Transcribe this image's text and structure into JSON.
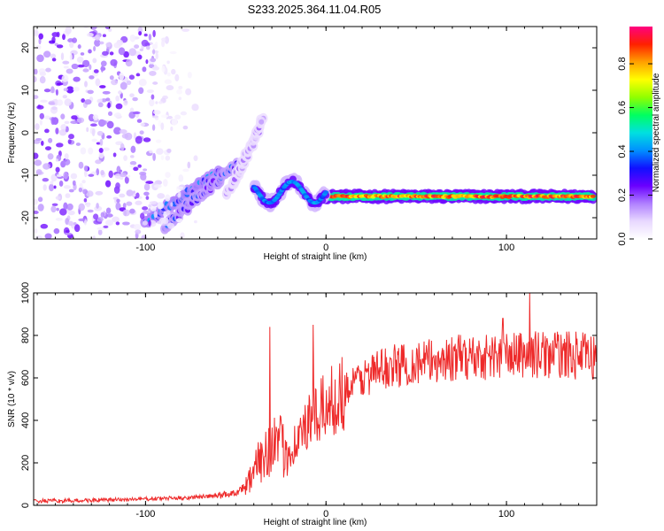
{
  "title": "S233.2025.364.11.04.R05",
  "chart_data": [
    {
      "type": "heatmap",
      "name": "spectrogram",
      "xlabel": "Height of straight line (km)",
      "ylabel": "Frequency (Hz)",
      "xlim": [
        -162,
        150
      ],
      "ylim": [
        -25,
        25
      ],
      "xticks": [
        -100,
        0,
        100
      ],
      "yticks": [
        -20,
        -10,
        0,
        10,
        20
      ],
      "colorbar": {
        "label": "Normalized spectral amplitude",
        "range": [
          0,
          0.97
        ],
        "ticks": [
          0.0,
          0.2,
          0.4,
          0.6,
          0.8
        ],
        "tick_labels": [
          "0.0",
          "0.2",
          "0.4",
          "0.6",
          "0.8"
        ],
        "colors": [
          "#ffffff",
          "#e8d8ff",
          "#b080ff",
          "#6a00ff",
          "#1010ff",
          "#0090ff",
          "#00e0e0",
          "#00ff60",
          "#90ff00",
          "#ffff00",
          "#ffa000",
          "#ff2000",
          "#ff0080"
        ]
      },
      "features": [
        {
          "name": "main-trace",
          "x_range": [
            0,
            148
          ],
          "freq": -15,
          "amplitude": 0.95
        },
        {
          "name": "transition-trace",
          "x_range": [
            -40,
            0
          ],
          "freq": -14,
          "amplitude": 0.45
        },
        {
          "name": "ascending-streak-1",
          "x": [
            -100,
            -58
          ],
          "freq": [
            -21,
            -9
          ],
          "amplitude": 0.35
        },
        {
          "name": "ascending-streak-2",
          "x": [
            -90,
            -48
          ],
          "freq": [
            -22,
            -7
          ],
          "amplitude": 0.3
        },
        {
          "name": "ascending-streak-3",
          "x": [
            -55,
            -35
          ],
          "freq": [
            -15,
            3
          ],
          "amplitude": 0.15
        },
        {
          "name": "noise-region",
          "x_range": [
            -162,
            -95
          ],
          "freq_range": [
            -25,
            25
          ],
          "amplitude": 0.2
        }
      ]
    },
    {
      "type": "line",
      "name": "snr",
      "xlabel": "Height of straight line (km)",
      "ylabel": "SNR (10 * v/v)",
      "xlim": [
        -162,
        150
      ],
      "ylim": [
        0,
        1000
      ],
      "xticks": [
        -100,
        0,
        100
      ],
      "yticks": [
        0,
        200,
        400,
        600,
        800,
        1000
      ],
      "color": "#ee2a2a",
      "x": [
        -160,
        -140,
        -120,
        -100,
        -80,
        -60,
        -50,
        -45,
        -40,
        -35,
        -30,
        -25,
        -20,
        -15,
        -10,
        -5,
        0,
        5,
        10,
        15,
        20,
        30,
        40,
        50,
        60,
        70,
        80,
        90,
        100,
        110,
        120,
        130,
        140,
        148
      ],
      "values": [
        20,
        22,
        25,
        30,
        35,
        45,
        60,
        90,
        150,
        240,
        300,
        270,
        260,
        320,
        380,
        420,
        470,
        500,
        540,
        570,
        600,
        640,
        660,
        670,
        680,
        690,
        700,
        700,
        705,
        710,
        710,
        710,
        705,
        700
      ],
      "peaks": [
        {
          "x": -31,
          "value": 840
        },
        {
          "x": -7,
          "value": 850
        },
        {
          "x": 113,
          "value": 1000
        },
        {
          "x": 98,
          "value": 880
        }
      ]
    }
  ]
}
